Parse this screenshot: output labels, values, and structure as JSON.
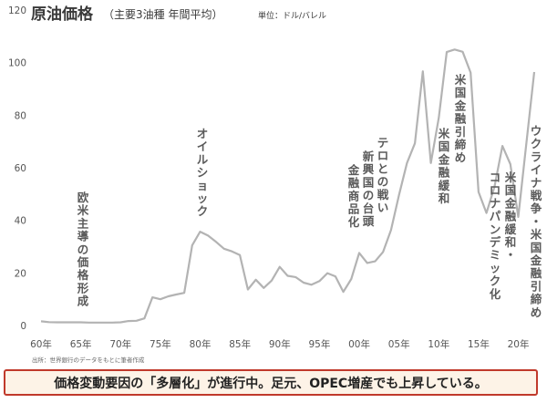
{
  "chart_data": {
    "type": "line",
    "title": "原油価格",
    "subtitle": "（主要3油種 年間平均）",
    "unit_label": "単位：ドル/バレル",
    "x": [
      1960,
      1961,
      1962,
      1963,
      1964,
      1965,
      1966,
      1967,
      1968,
      1969,
      1970,
      1971,
      1972,
      1973,
      1974,
      1975,
      1976,
      1977,
      1978,
      1979,
      1980,
      1981,
      1982,
      1983,
      1984,
      1985,
      1986,
      1987,
      1988,
      1989,
      1990,
      1991,
      1992,
      1993,
      1994,
      1995,
      1996,
      1997,
      1998,
      1999,
      2000,
      2001,
      2002,
      2003,
      2004,
      2005,
      2006,
      2007,
      2008,
      2009,
      2010,
      2011,
      2012,
      2013,
      2014,
      2015,
      2016,
      2017,
      2018,
      2019,
      2020,
      2021,
      2022
    ],
    "values": [
      1.6,
      1.3,
      1.2,
      1.2,
      1.2,
      1.2,
      1.1,
      1.1,
      1.1,
      1.1,
      1.2,
      1.7,
      1.8,
      2.7,
      10.7,
      10.0,
      11.1,
      11.8,
      12.4,
      30.5,
      35.7,
      34.2,
      31.8,
      29.2,
      28.2,
      26.8,
      13.7,
      17.4,
      14.3,
      17.1,
      22.3,
      18.9,
      18.4,
      16.3,
      15.5,
      16.9,
      19.9,
      18.7,
      12.8,
      17.7,
      27.6,
      23.8,
      24.4,
      28.0,
      36.3,
      49.7,
      61.8,
      69.3,
      96.7,
      61.8,
      79.0,
      104.0,
      105.0,
      104.1,
      96.2,
      50.8,
      42.8,
      52.8,
      68.3,
      61.4,
      41.3,
      69.1,
      96.4
    ],
    "xticks": [
      "60年",
      "65年",
      "70年",
      "75年",
      "80年",
      "85年",
      "90年",
      "95年",
      "00年",
      "05年",
      "10年",
      "15年",
      "20年"
    ],
    "ylim": [
      0,
      120
    ],
    "yticks": [
      "0",
      "20",
      "40",
      "60",
      "80",
      "100",
      "120"
    ],
    "line_color": "#b3b3b3",
    "annotations": [
      "欧米主導の価格形成",
      "オイルショック",
      "テロとの戦い",
      "新興国の台頭",
      "金融商品化",
      "米国金融緩和",
      "米国金融引締め",
      "米国金融緩和・",
      "コロナパンデミック化",
      "ウクライナ戦争・米国金融引締め"
    ],
    "source": "出所：世界銀行のデータをもとに筆者作成"
  },
  "footer_text": "価格変動要因の「多層化」が進行中。足元、OPEC増産でも上昇している。"
}
